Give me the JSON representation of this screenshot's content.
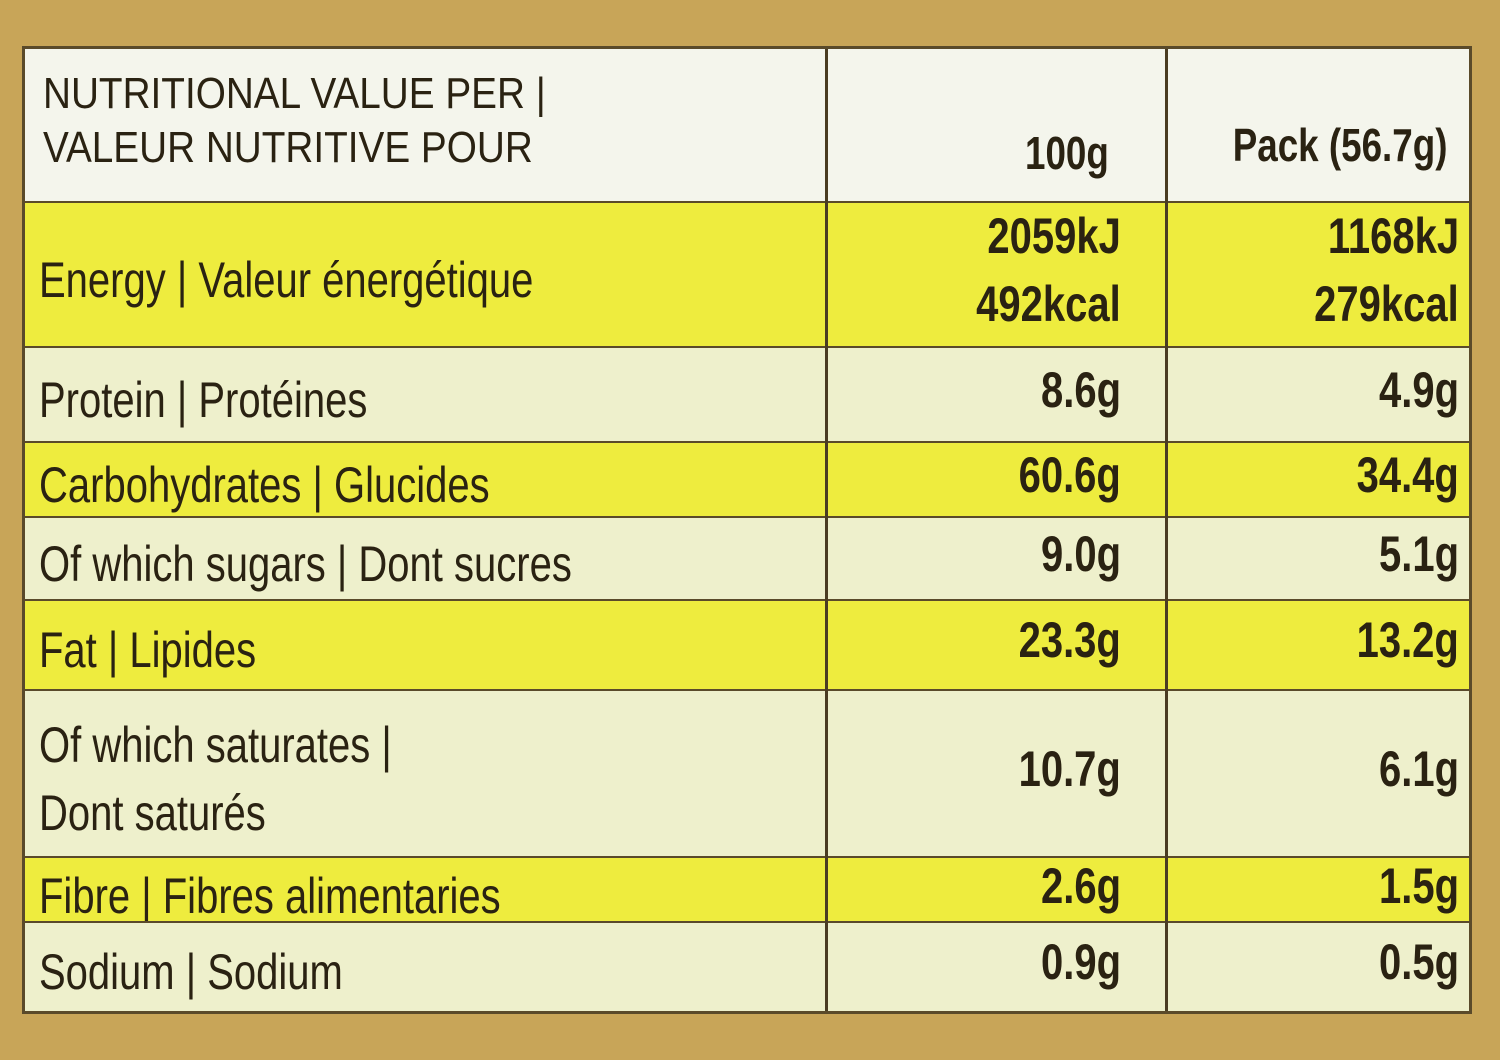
{
  "header": {
    "label_lines": [
      "NUTRITIONAL VALUE PER |",
      "VALEUR NUTRITIVE POUR"
    ],
    "col_100g": "100g",
    "col_pack": "Pack (56.7g)"
  },
  "table": {
    "rows": [
      {
        "label_lines": [
          "Energy | Valeur énergétique"
        ],
        "per_100g": [
          "2059kJ",
          "492kcal"
        ],
        "per_pack": [
          "1168kJ",
          "279kcal"
        ]
      },
      {
        "label_lines": [
          "Protein | Protéines"
        ],
        "per_100g": [
          "8.6g"
        ],
        "per_pack": [
          "4.9g"
        ]
      },
      {
        "label_lines": [
          "Carbohydrates | Glucides"
        ],
        "per_100g": [
          "60.6g"
        ],
        "per_pack": [
          "34.4g"
        ]
      },
      {
        "label_lines": [
          "Of which sugars | Dont sucres"
        ],
        "per_100g": [
          "9.0g"
        ],
        "per_pack": [
          "5.1g"
        ]
      },
      {
        "label_lines": [
          "Fat | Lipides"
        ],
        "per_100g": [
          "23.3g"
        ],
        "per_pack": [
          "13.2g"
        ]
      },
      {
        "label_lines": [
          "Of which saturates |",
          "Dont saturés"
        ],
        "per_100g": [
          "10.7g"
        ],
        "per_pack": [
          "6.1g"
        ]
      },
      {
        "label_lines": [
          "Fibre | Fibres alimentaries"
        ],
        "per_100g": [
          "2.6g"
        ],
        "per_pack": [
          "1.5g"
        ]
      },
      {
        "label_lines": [
          "Sodium | Sodium"
        ],
        "per_100g": [
          "0.9g"
        ],
        "per_pack": [
          "0.5g"
        ]
      }
    ]
  }
}
